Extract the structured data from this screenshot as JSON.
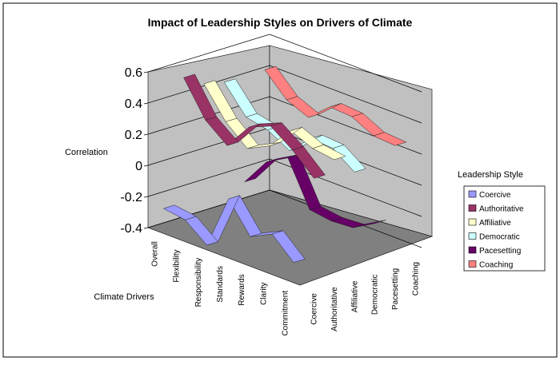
{
  "chart_data": {
    "type": "line",
    "style": "3d-ribbon",
    "title": "Impact of Leadership Styles on Drivers of Climate",
    "zlabel": "Correlation",
    "xlabel": "Climate Drivers",
    "zlim": [
      -0.4,
      0.6
    ],
    "zticks": [
      "0.6",
      "0.4",
      "0.2",
      "0",
      "-0.2",
      "-0.4"
    ],
    "zticks_values": [
      0.6,
      0.4,
      0.2,
      0,
      -0.2,
      -0.4
    ],
    "categories": [
      "Overall",
      "Flexibility",
      "Responsibility",
      "Standards",
      "Rewards",
      "Clarity",
      "Commitment"
    ],
    "depth_categories": [
      "Coercive",
      "Authoritative",
      "Affiliative",
      "Democratic",
      "Pacesetting",
      "Coaching"
    ],
    "legend": {
      "title": "Leadership Style",
      "position": "right"
    },
    "series": [
      {
        "name": "Coercive",
        "color": "#9999ff",
        "values": [
          -0.26,
          -0.28,
          -0.39,
          -0.04,
          -0.23,
          -0.16,
          -0.29
        ]
      },
      {
        "name": "Authoritative",
        "color": "#993366",
        "values": [
          0.54,
          0.32,
          0.21,
          0.38,
          0.44,
          0.34,
          0.21
        ]
      },
      {
        "name": "Affiliative",
        "color": "#ffffcc",
        "values": [
          0.46,
          0.27,
          0.15,
          0.22,
          0.37,
          0.31,
          0.29
        ]
      },
      {
        "name": "Democratic",
        "color": "#ccffff",
        "values": [
          0.43,
          0.26,
          0.23,
          0.15,
          0.28,
          0.27,
          0.17
        ]
      },
      {
        "name": "Pacesetting",
        "color": "#660066",
        "values": [
          -0.25,
          -0.07,
          0.01,
          -0.27,
          -0.29,
          -0.28,
          -0.2
        ]
      },
      {
        "name": "Coaching",
        "color": "#ff8080",
        "values": [
          0.43,
          0.29,
          0.23,
          0.35,
          0.34,
          0.27,
          0.26
        ]
      }
    ]
  }
}
